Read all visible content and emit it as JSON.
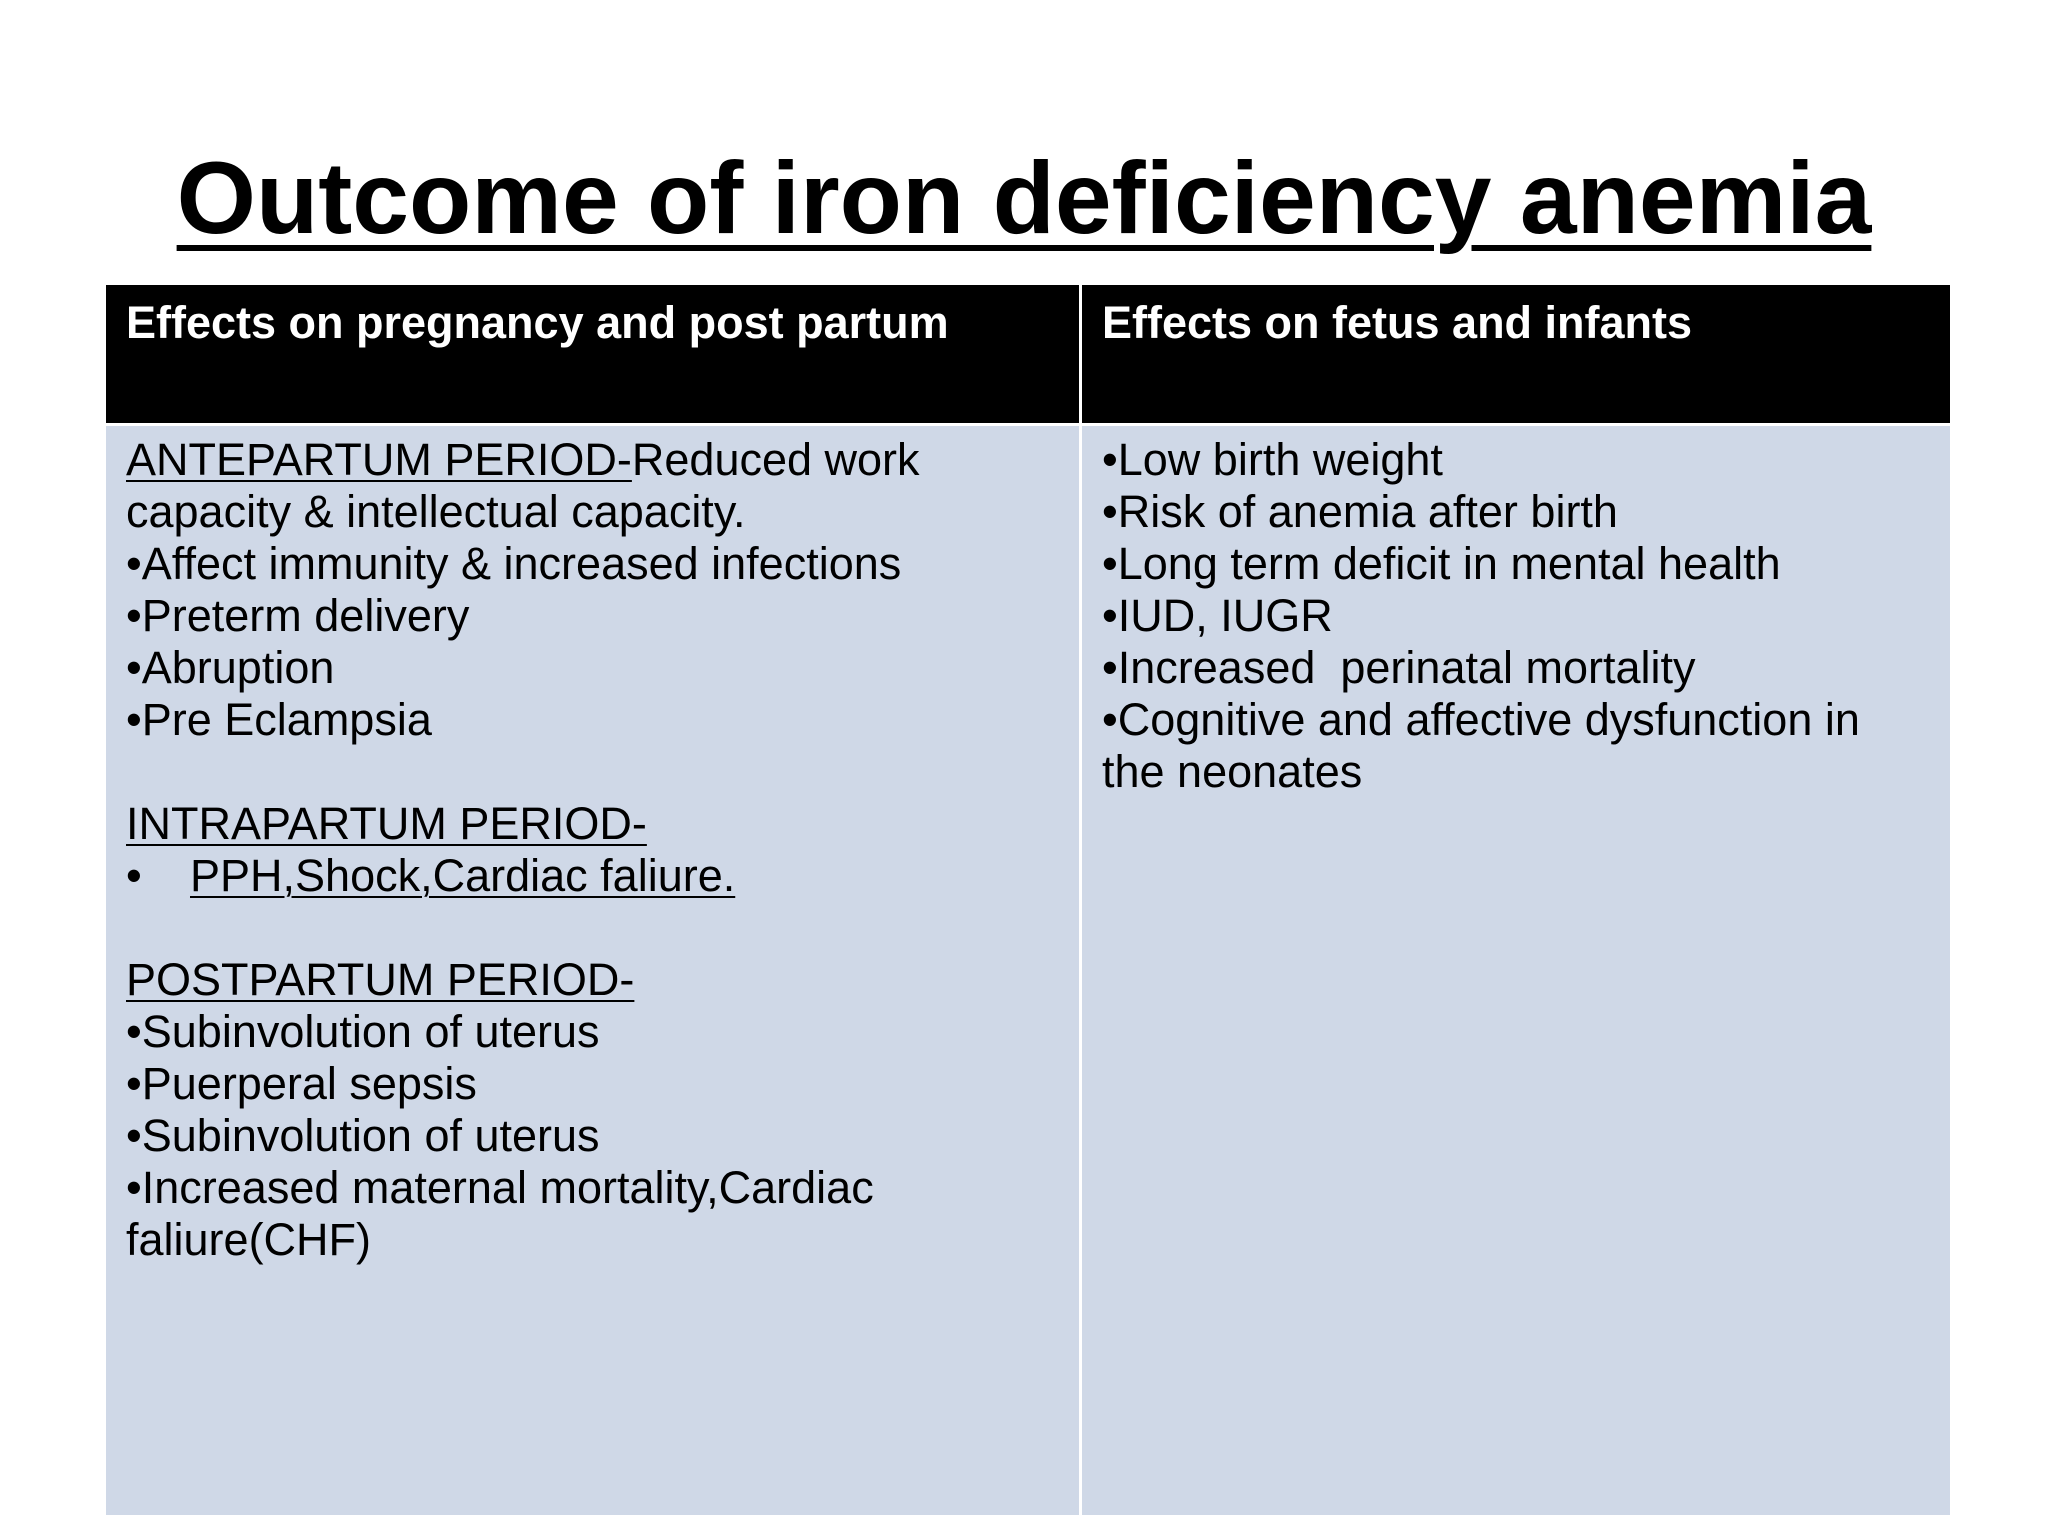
{
  "title": "Outcome of iron deficiency anemia",
  "table": {
    "headers": [
      "Effects on pregnancy and post partum",
      "Effects on fetus and infants"
    ],
    "left": {
      "antepartum": {
        "heading": "ANTEPARTUM PERIOD-",
        "intro": "Reduced work",
        "intro_cont": "capacity & intellectual capacity.",
        "items": [
          "•Affect immunity & increased infections",
          "•Preterm delivery",
          "•Abruption",
          "•Pre Eclampsia"
        ]
      },
      "intrapartum": {
        "heading": "INTRAPARTUM PERIOD-",
        "bullet": "•",
        "item": "PPH,Shock,Cardiac faliure."
      },
      "postpartum": {
        "heading": "POSTPARTUM PERIOD-",
        "items": [
          "•Subinvolution of uterus",
          "•Puerperal sepsis",
          "•Subinvolution of uterus",
          "•Increased maternal mortality,Cardiac",
          "faliure(CHF)"
        ]
      }
    },
    "right": {
      "items": [
        "•Low birth weight",
        "•Risk of anemia after birth",
        "•Long term deficit in mental health",
        "•IUD, IUGR",
        "•Increased  perinatal mortality",
        "•Cognitive and affective dysfunction in",
        "the neonates"
      ]
    }
  }
}
